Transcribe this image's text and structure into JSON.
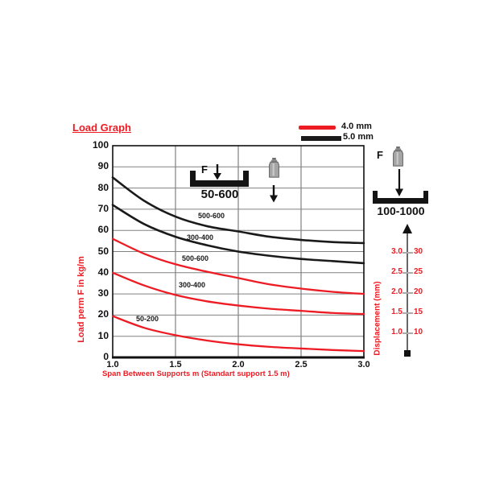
{
  "title": "Load Graph",
  "legend": [
    {
      "label": "4.0 mm",
      "color": "#ed1c24"
    },
    {
      "label": "5.0 mm",
      "color": "#1a1a1a"
    }
  ],
  "chart_data": {
    "type": "line",
    "title": "Load Graph",
    "xlabel": "Span Between Supports m (Standart support 1.5 m)",
    "ylabel": "Load perm F in kg/m",
    "xlim": [
      1.0,
      3.0
    ],
    "ylim": [
      0,
      100
    ],
    "x_ticks": [
      "1.0",
      "1.5",
      "2.0",
      "2.5",
      "3.0"
    ],
    "y_ticks": [
      "0",
      "10",
      "20",
      "30",
      "40",
      "50",
      "60",
      "70",
      "80",
      "90",
      "100"
    ],
    "grid": true,
    "legend_position": "top-right",
    "x": [
      1.0,
      1.25,
      1.5,
      1.75,
      2.0,
      2.25,
      2.5,
      2.75,
      3.0
    ],
    "series": [
      {
        "name": "500-600",
        "thickness": "5.0 mm",
        "color": "#1a1a1a",
        "values": [
          85,
          74,
          66.5,
          62,
          59.5,
          57,
          55.5,
          54.5,
          54
        ]
      },
      {
        "name": "300-400",
        "thickness": "5.0 mm",
        "color": "#1a1a1a",
        "values": [
          72,
          63,
          57,
          53,
          50,
          48,
          46.5,
          45.5,
          44.5
        ]
      },
      {
        "name": "500-600",
        "thickness": "4.0 mm",
        "color": "#ed1c24",
        "values": [
          56,
          49,
          44,
          40.5,
          37.5,
          34.5,
          32.5,
          31,
          30
        ]
      },
      {
        "name": "300-400",
        "thickness": "4.0 mm",
        "color": "#ed1c24",
        "values": [
          40,
          34,
          29.5,
          26.5,
          24.5,
          23,
          22,
          21,
          20.5
        ]
      },
      {
        "name": "50-200",
        "thickness": "4.0 mm",
        "color": "#ed1c24",
        "values": [
          19.5,
          14,
          10.5,
          8,
          6.2,
          5,
          4.2,
          3.5,
          3
        ]
      }
    ]
  },
  "annotations": {
    "inchart_force_label": "F",
    "inchart_profile_label": "50-600",
    "right_force_label": "F",
    "right_profile_label": "100-1000"
  },
  "displacement": {
    "axis_label": "Displacement (mm)",
    "ticks": [
      {
        "mm": "3.0",
        "value": "30"
      },
      {
        "mm": "2.5",
        "value": "25"
      },
      {
        "mm": "2.0",
        "value": "20"
      },
      {
        "mm": "1.5",
        "value": "15"
      },
      {
        "mm": "1.0",
        "value": "10"
      }
    ]
  },
  "colors": {
    "red": "#ed1c24",
    "black": "#1a1a1a",
    "grid": "#808080"
  }
}
